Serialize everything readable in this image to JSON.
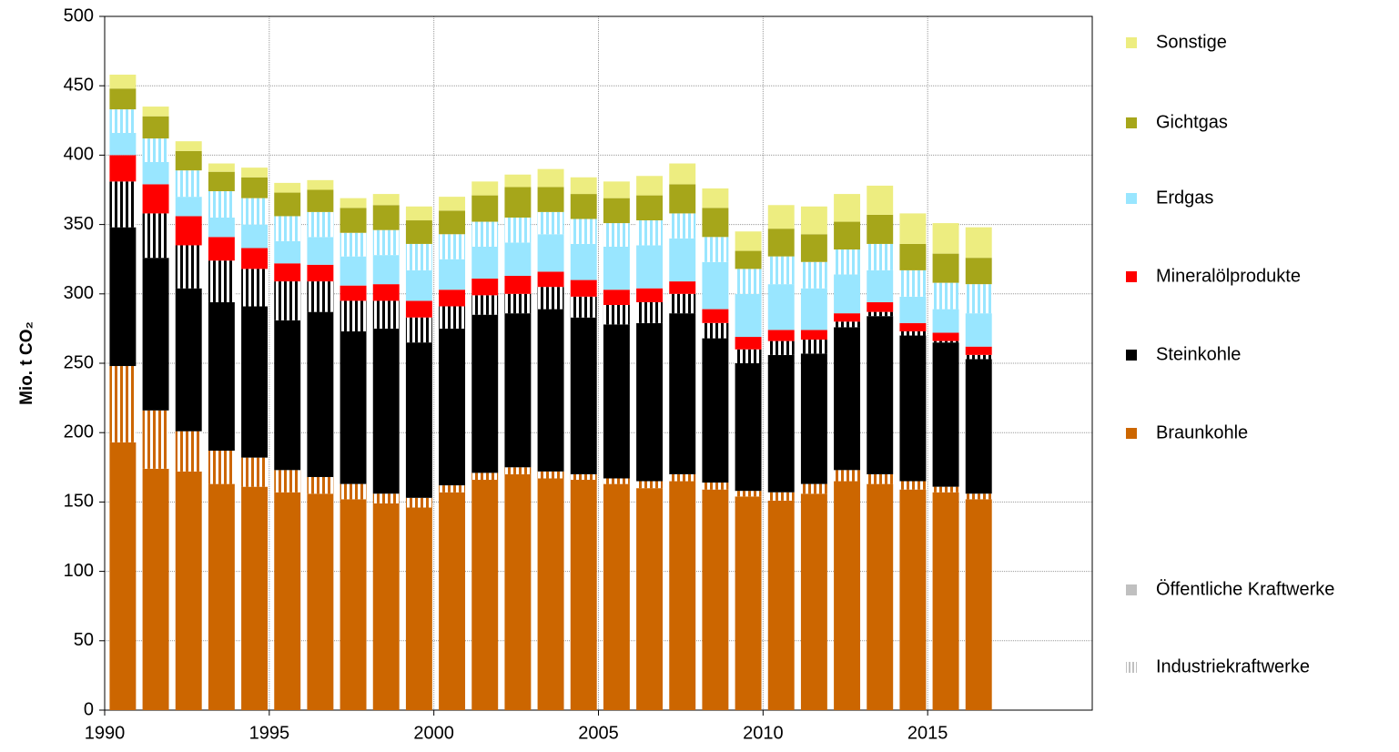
{
  "chart_data": {
    "type": "bar",
    "y_label": "Mio. t CO₂",
    "x": [
      1990,
      1991,
      1992,
      1993,
      1994,
      1995,
      1996,
      1997,
      1998,
      1999,
      2000,
      2001,
      2002,
      2003,
      2004,
      2005,
      2006,
      2007,
      2008,
      2009,
      2010,
      2011,
      2012,
      2013,
      2014,
      2015,
      2016
    ],
    "xlim": [
      1990,
      2020
    ],
    "xticks": [
      1990,
      1995,
      2000,
      2005,
      2010,
      2015
    ],
    "ylim": [
      0,
      500
    ],
    "yticks": [
      0,
      50,
      100,
      150,
      200,
      250,
      300,
      350,
      400,
      450,
      500
    ],
    "grid": true,
    "stacked": true,
    "legend": "right",
    "series": [
      {
        "name": "Braunkohle",
        "color": "#cc6600",
        "values": [
          193,
          174,
          172,
          163,
          161,
          157,
          156,
          152,
          149,
          146,
          157,
          166,
          170,
          167,
          166,
          163,
          160,
          165,
          159,
          154,
          151,
          156,
          165,
          163,
          159,
          157,
          152
        ],
        "industrial": [
          55,
          42,
          29,
          24,
          21,
          16,
          12,
          11,
          7,
          7,
          5,
          5,
          5,
          5,
          4,
          4,
          5,
          5,
          5,
          4,
          6,
          7,
          8,
          7,
          6,
          4,
          4
        ]
      },
      {
        "name": "Steinkohle",
        "color": "#000000",
        "values": [
          100,
          110,
          103,
          107,
          109,
          108,
          119,
          110,
          119,
          112,
          113,
          114,
          111,
          117,
          113,
          111,
          114,
          116,
          104,
          92,
          99,
          94,
          103,
          114,
          105,
          104,
          97
        ],
        "industrial": [
          33,
          32,
          31,
          30,
          27,
          28,
          22,
          22,
          20,
          18,
          16,
          14,
          14,
          16,
          15,
          14,
          15,
          14,
          11,
          10,
          10,
          10,
          4,
          3,
          3,
          1,
          3
        ]
      },
      {
        "name": "Mineralölprodukte",
        "color": "#ff0000",
        "values": [
          19,
          21,
          21,
          17,
          15,
          13,
          12,
          11,
          12,
          12,
          12,
          12,
          13,
          11,
          12,
          11,
          10,
          9,
          10,
          9,
          8,
          7,
          6,
          7,
          6,
          6,
          6
        ]
      },
      {
        "name": "Erdgas",
        "color": "#99e6ff",
        "values": [
          16,
          16,
          14,
          14,
          17,
          16,
          20,
          21,
          21,
          22,
          22,
          23,
          24,
          27,
          26,
          31,
          31,
          31,
          34,
          31,
          33,
          30,
          28,
          23,
          19,
          17,
          24
        ],
        "industrial": [
          17,
          17,
          19,
          19,
          19,
          18,
          18,
          17,
          18,
          19,
          18,
          18,
          18,
          16,
          18,
          17,
          18,
          18,
          18,
          18,
          20,
          19,
          18,
          19,
          19,
          19,
          21
        ]
      },
      {
        "name": "Gichtgas",
        "color": "#a6a61a",
        "values": [
          15,
          16,
          14,
          14,
          15,
          17,
          16,
          18,
          18,
          17,
          17,
          19,
          22,
          18,
          18,
          18,
          18,
          21,
          21,
          13,
          20,
          20,
          20,
          21,
          19,
          21,
          19
        ]
      },
      {
        "name": "Sonstige",
        "color": "#eded80",
        "values": [
          10,
          7,
          7,
          6,
          7,
          7,
          7,
          7,
          8,
          10,
          10,
          10,
          9,
          13,
          12,
          12,
          14,
          15,
          14,
          14,
          17,
          20,
          20,
          21,
          22,
          22,
          22
        ]
      }
    ],
    "plant_types": [
      {
        "name": "Öffentliche Kraftwerke",
        "color": "#c0c0c0"
      },
      {
        "name": "Industriekraftwerke",
        "color": "#c0c0c0"
      }
    ]
  }
}
